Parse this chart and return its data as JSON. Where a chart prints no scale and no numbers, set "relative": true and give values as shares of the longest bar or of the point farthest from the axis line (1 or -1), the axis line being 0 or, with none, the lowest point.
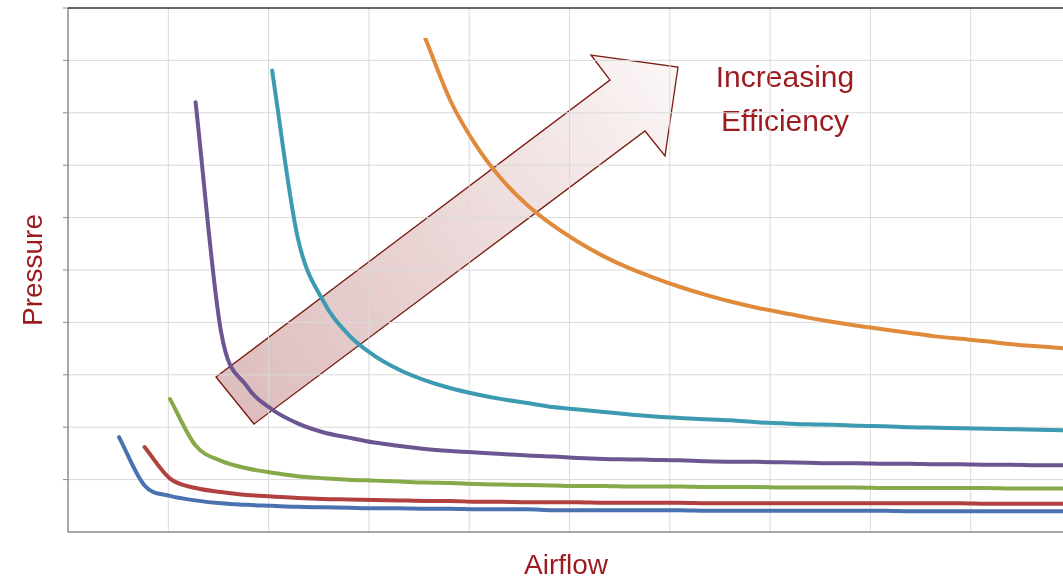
{
  "chart_data": {
    "type": "line",
    "relative": true,
    "xlabel": "Airflow",
    "ylabel": "Pressure",
    "grid": true,
    "annotations": [
      "Increasing Efficiency"
    ],
    "categories": [
      null,
      null,
      null,
      null,
      null,
      null,
      null,
      null,
      null,
      null,
      null,
      null,
      null,
      null,
      null,
      null,
      null,
      null,
      null,
      null,
      null,
      null,
      null,
      null,
      null,
      null,
      null,
      null,
      null,
      null,
      null,
      null,
      null,
      null,
      null,
      null,
      null,
      null,
      null,
      null
    ],
    "series": [
      {
        "color": "#4a72b0",
        "values": [
          null,
          null,
          0.192,
          0.094,
          0.073,
          0.064,
          0.058,
          0.055,
          0.053,
          0.051,
          0.05,
          0.049,
          0.048,
          0.048,
          0.047,
          0.047,
          0.046,
          0.046,
          0.046,
          0.044,
          0.044,
          0.044,
          0.044,
          0.044,
          0.044,
          0.043,
          0.043,
          0.043,
          0.043,
          0.043,
          0.043,
          0.043,
          0.043,
          0.042,
          0.042,
          0.042,
          0.042,
          0.042,
          0.042,
          0.042
        ]
      },
      {
        "color": "#b0413e",
        "values": [
          null,
          null,
          null,
          0.172,
          0.108,
          0.089,
          0.081,
          0.075,
          0.072,
          0.069,
          0.067,
          0.066,
          0.065,
          0.064,
          0.063,
          0.063,
          0.061,
          0.061,
          0.06,
          0.06,
          0.06,
          0.059,
          0.059,
          0.059,
          0.059,
          0.058,
          0.058,
          0.058,
          0.058,
          0.058,
          0.058,
          0.058,
          0.058,
          0.058,
          0.058,
          0.058,
          0.057,
          0.057,
          0.057,
          0.057
        ]
      },
      {
        "color": "#86a94a",
        "values": [
          null,
          null,
          null,
          null,
          0.269,
          0.175,
          0.144,
          0.129,
          0.12,
          0.113,
          0.109,
          0.106,
          0.104,
          0.102,
          0.1,
          0.099,
          0.097,
          0.096,
          0.095,
          0.094,
          0.093,
          0.093,
          0.092,
          0.092,
          0.092,
          0.091,
          0.091,
          0.091,
          0.09,
          0.09,
          0.09,
          0.09,
          0.089,
          0.089,
          0.089,
          0.089,
          0.089,
          0.088,
          0.088,
          0.088
        ]
      },
      {
        "color": "#6c5591",
        "values": [
          null,
          null,
          null,
          null,
          null,
          0.87,
          0.405,
          0.296,
          0.248,
          0.22,
          0.202,
          0.191,
          0.181,
          0.174,
          0.168,
          0.164,
          0.161,
          0.158,
          0.155,
          0.153,
          0.15,
          0.148,
          0.147,
          0.146,
          0.145,
          0.143,
          0.142,
          0.142,
          0.141,
          0.14,
          0.139,
          0.139,
          0.138,
          0.138,
          0.137,
          0.137,
          0.136,
          0.136,
          0.135,
          0.135
        ]
      },
      {
        "color": "#3c9bb0",
        "values": [
          null,
          null,
          null,
          null,
          null,
          null,
          null,
          null,
          0.934,
          0.597,
          0.468,
          0.399,
          0.357,
          0.328,
          0.307,
          0.291,
          0.279,
          0.269,
          0.261,
          0.253,
          0.248,
          0.243,
          0.238,
          0.234,
          0.231,
          0.228,
          0.226,
          0.222,
          0.22,
          0.218,
          0.217,
          0.215,
          0.214,
          0.212,
          0.211,
          0.21,
          0.209,
          0.208,
          0.207,
          0.206
        ]
      },
      {
        "color": "#e08a3c",
        "values": [
          null,
          null,
          null,
          null,
          null,
          null,
          null,
          null,
          null,
          null,
          null,
          null,
          null,
          null,
          1,
          0.872,
          0.782,
          0.714,
          0.662,
          0.621,
          0.587,
          0.558,
          0.534,
          0.514,
          0.496,
          0.48,
          0.466,
          0.454,
          0.444,
          0.434,
          0.425,
          0.417,
          0.41,
          0.403,
          0.396,
          0.391,
          0.386,
          0.38,
          0.376,
          0.372
        ]
      }
    ]
  }
}
